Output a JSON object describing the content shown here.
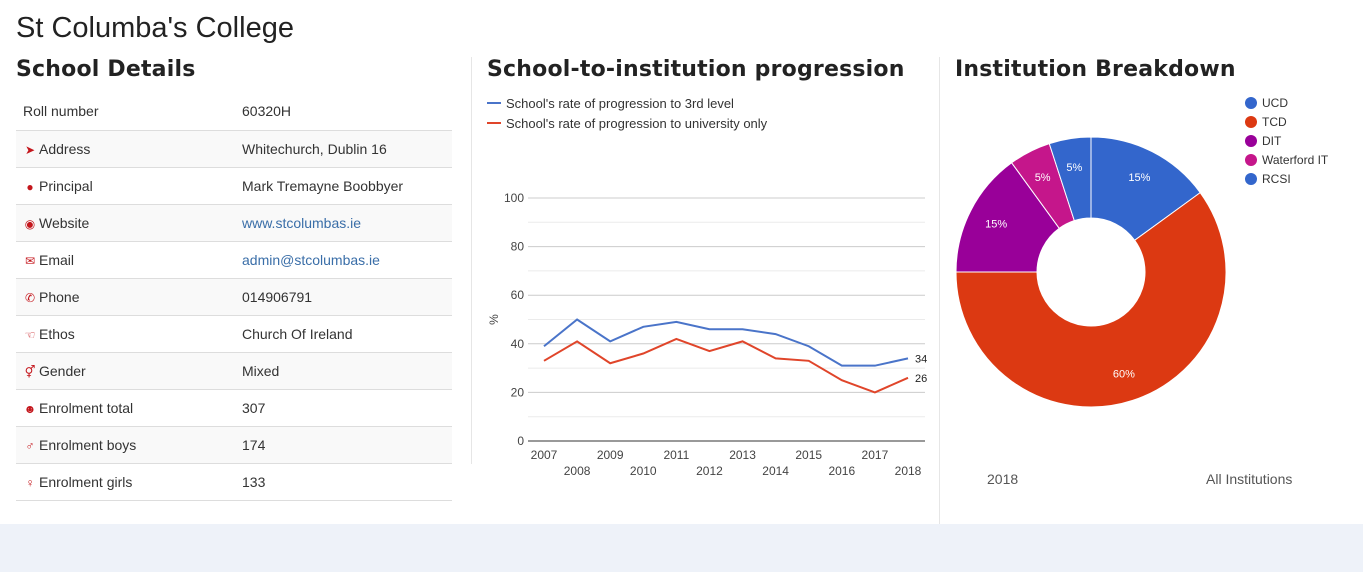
{
  "school": {
    "name": "St Columba's College"
  },
  "details": {
    "title": "School Details",
    "rows": [
      {
        "icon": "",
        "icon_name": "none",
        "label": "Roll number",
        "value": "60320H"
      },
      {
        "icon": "➤",
        "icon_name": "location-arrow-icon",
        "label": "Address",
        "value": "Whitechurch, Dublin 16"
      },
      {
        "icon": "●",
        "icon_name": "user-icon",
        "label": "Principal",
        "value": "Mark Tremayne Boobbyer"
      },
      {
        "icon": "◉",
        "icon_name": "globe-icon",
        "label": "Website",
        "value": "www.stcolumbas.ie",
        "link": true
      },
      {
        "icon": "✉",
        "icon_name": "envelope-icon",
        "label": "Email",
        "value": "admin@stcolumbas.ie",
        "link": true
      },
      {
        "icon": "✆",
        "icon_name": "phone-icon",
        "label": "Phone",
        "value": "014906791"
      },
      {
        "icon": "☜",
        "icon_name": "hand-icon",
        "label": "Ethos",
        "value": "Church Of Ireland"
      },
      {
        "icon": "⚥",
        "icon_name": "gender-icon",
        "label": "Gender",
        "value": "Mixed"
      },
      {
        "icon": "☻",
        "icon_name": "users-icon",
        "label": "Enrolment total",
        "value": "307"
      },
      {
        "icon": "♂",
        "icon_name": "male-icon",
        "label": "Enrolment boys",
        "value": "174"
      },
      {
        "icon": "♀",
        "icon_name": "female-icon",
        "label": "Enrolment girls",
        "value": "133"
      }
    ]
  },
  "progression": {
    "title": "School-to-institution progression"
  },
  "institution": {
    "title": "Institution Breakdown",
    "year_label": "2018",
    "filter_label": "All Institutions"
  },
  "colors": {
    "blue": "#4a74c9",
    "red": "#e0452a",
    "icon_red": "#c4161c"
  },
  "chart_data": [
    {
      "type": "line",
      "title": "School-to-institution progression",
      "ylabel": "%",
      "xlabel": "",
      "x": [
        2007,
        2008,
        2009,
        2010,
        2011,
        2012,
        2013,
        2014,
        2015,
        2016,
        2017,
        2018
      ],
      "ylim": [
        0,
        100
      ],
      "yticks": [
        0,
        20,
        40,
        60,
        80,
        100
      ],
      "grid": true,
      "legend": "top-left",
      "series": [
        {
          "name": "School's rate of progression to 3rd level",
          "color": "#4a74c9",
          "values": [
            39,
            50,
            41,
            47,
            49,
            46,
            46,
            44,
            39,
            31,
            31,
            34
          ],
          "end_label": "34"
        },
        {
          "name": "School's rate of progression to university only",
          "color": "#e0452a",
          "values": [
            33,
            41,
            32,
            36,
            42,
            37,
            41,
            34,
            33,
            25,
            20,
            26
          ],
          "end_label": "26"
        }
      ]
    },
    {
      "type": "pie",
      "title": "Institution Breakdown",
      "donut": true,
      "legend": "right",
      "slices": [
        {
          "name": "UCD",
          "value": 15,
          "label": "15%",
          "color": "#3366cc"
        },
        {
          "name": "TCD",
          "value": 60,
          "label": "60%",
          "color": "#dc3912"
        },
        {
          "name": "DIT",
          "value": 15,
          "label": "15%",
          "color": "#990099"
        },
        {
          "name": "Waterford IT",
          "value": 5,
          "label": "5%",
          "color": "#c5168b"
        },
        {
          "name": "RCSI",
          "value": 5,
          "label": "5%",
          "color": "#3366cc"
        }
      ]
    }
  ]
}
